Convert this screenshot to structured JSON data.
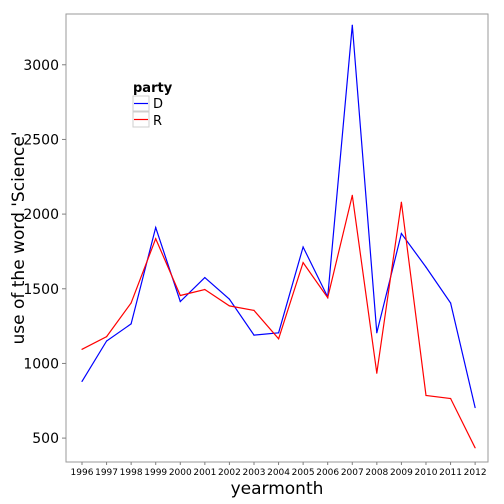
{
  "chart_data": {
    "type": "line",
    "xlabel": "yearmonth",
    "ylabel": "use of the word 'Science'",
    "categories": [
      "1996",
      "1997",
      "1998",
      "1999",
      "2000",
      "2001",
      "2002",
      "2003",
      "2004",
      "2005",
      "2006",
      "2007",
      "2008",
      "2009",
      "2010",
      "2011",
      "2012"
    ],
    "yticks": [
      500,
      1000,
      1500,
      2000,
      2500,
      3000
    ],
    "ylim": [
      340,
      3340
    ],
    "grid": false,
    "legend": {
      "title": "party",
      "placement": "top-left",
      "entries": [
        "D",
        "R"
      ]
    },
    "series": [
      {
        "name": "D",
        "color": "#0000ff",
        "values": [
          880,
          1150,
          1265,
          1910,
          1415,
          1575,
          1430,
          1190,
          1205,
          1780,
          1445,
          3265,
          1205,
          1870,
          1645,
          1405,
          705
        ]
      },
      {
        "name": "R",
        "color": "#ff0000",
        "values": [
          1095,
          1180,
          1405,
          1835,
          1455,
          1495,
          1385,
          1355,
          1165,
          1675,
          1440,
          2125,
          935,
          2080,
          785,
          765,
          435
        ]
      }
    ]
  }
}
